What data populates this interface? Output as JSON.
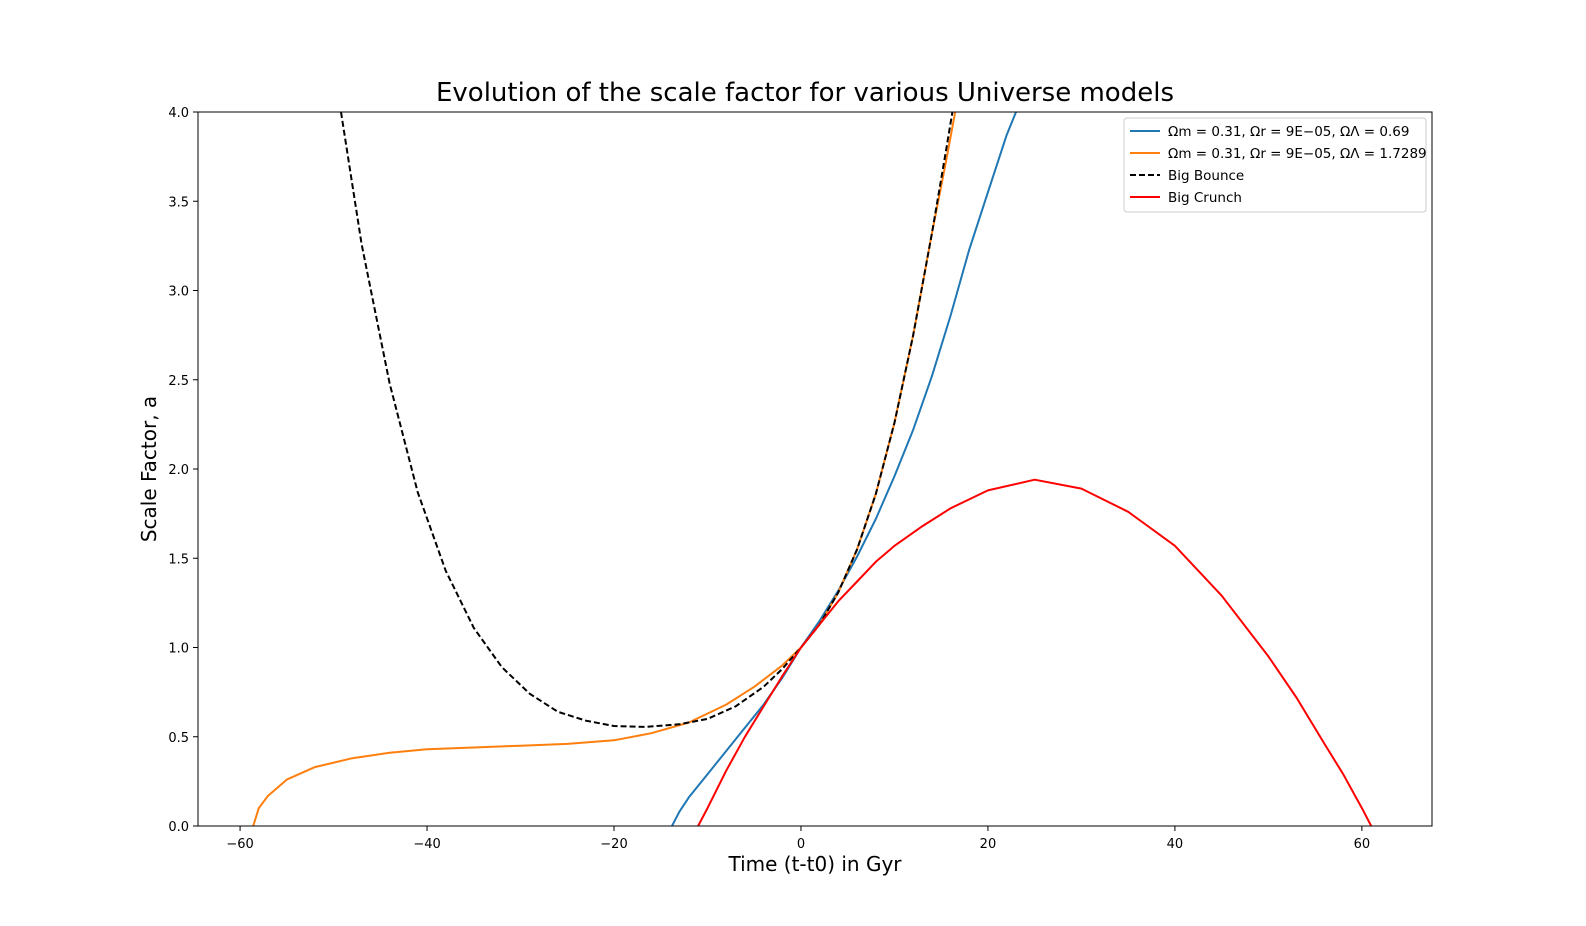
{
  "chart_data": {
    "type": "line",
    "title": "Evolution of the scale factor for various Universe models",
    "xlabel": "Time (t-t0) in Gyr",
    "ylabel": "Scale Factor, a",
    "xlim": [
      -64.5,
      67.5
    ],
    "ylim": [
      0.0,
      4.0
    ],
    "xticks": [
      -60,
      -40,
      -20,
      0,
      20,
      40,
      60
    ],
    "xtick_labels": [
      "−60",
      "−40",
      "−20",
      "0",
      "20",
      "40",
      "60"
    ],
    "yticks": [
      0.0,
      0.5,
      1.0,
      1.5,
      2.0,
      2.5,
      3.0,
      3.5,
      4.0
    ],
    "ytick_labels": [
      "0.0",
      "0.5",
      "1.0",
      "1.5",
      "2.0",
      "2.5",
      "3.0",
      "3.5",
      "4.0"
    ],
    "grid": false,
    "legend_position": "top-right",
    "series": [
      {
        "name": "Ωm = 0.31, Ωr = 9E−05, ΩΛ = 0.69",
        "color": "#1f77b4",
        "dash": "solid",
        "x": [
          -13.8,
          -13.0,
          -12.0,
          -10.0,
          -8.0,
          -6.0,
          -4.0,
          -2.0,
          0.0,
          2.0,
          4.0,
          6.0,
          8.0,
          10.0,
          12.0,
          14.0,
          16.0,
          18.0,
          20.0,
          22.0,
          23.0
        ],
        "y": [
          0.0,
          0.08,
          0.16,
          0.29,
          0.42,
          0.55,
          0.68,
          0.83,
          1.0,
          1.15,
          1.32,
          1.51,
          1.72,
          1.96,
          2.22,
          2.52,
          2.86,
          3.23,
          3.55,
          3.87,
          4.0
        ]
      },
      {
        "name": "Ωm = 0.31, Ωr = 9E−05, ΩΛ = 1.7289",
        "color": "#ff7f0e",
        "dash": "solid",
        "x": [
          -58.6,
          -58.0,
          -57.0,
          -55.0,
          -52.0,
          -48.0,
          -44.0,
          -40.0,
          -35.0,
          -30.0,
          -25.0,
          -20.0,
          -16.0,
          -12.0,
          -8.0,
          -5.0,
          -2.0,
          0.0,
          2.0,
          4.0,
          6.0,
          8.0,
          10.0,
          12.0,
          14.0,
          15.5,
          16.5
        ],
        "y": [
          0.0,
          0.1,
          0.17,
          0.26,
          0.33,
          0.38,
          0.41,
          0.43,
          0.44,
          0.45,
          0.46,
          0.48,
          0.52,
          0.58,
          0.68,
          0.78,
          0.9,
          1.0,
          1.13,
          1.31,
          1.55,
          1.86,
          2.26,
          2.75,
          3.32,
          3.72,
          4.0
        ]
      },
      {
        "name": "Big Bounce",
        "color": "#000000",
        "dash": "dashed",
        "x": [
          -49.2,
          -47.0,
          -44.0,
          -41.0,
          -38.0,
          -35.0,
          -32.0,
          -29.0,
          -26.0,
          -23.0,
          -20.0,
          -16.7,
          -13.0,
          -10.0,
          -7.0,
          -4.0,
          -2.0,
          0.0,
          2.0,
          4.0,
          6.0,
          8.0,
          10.0,
          12.0,
          14.0,
          15.5,
          16.2
        ],
        "y": [
          4.0,
          3.26,
          2.48,
          1.87,
          1.43,
          1.11,
          0.89,
          0.74,
          0.64,
          0.59,
          0.56,
          0.555,
          0.57,
          0.6,
          0.67,
          0.78,
          0.88,
          1.0,
          1.13,
          1.31,
          1.55,
          1.86,
          2.26,
          2.75,
          3.32,
          3.78,
          4.0
        ]
      },
      {
        "name": "Big Crunch",
        "color": "#ff0000",
        "dash": "solid",
        "x": [
          -11.0,
          -10.0,
          -8.0,
          -6.0,
          -4.0,
          -2.0,
          0.0,
          2.0,
          4.0,
          6.0,
          8.0,
          10.0,
          13.0,
          16.0,
          20.0,
          25.0,
          30.0,
          35.0,
          40.0,
          45.0,
          50.0,
          53.0,
          56.0,
          58.0,
          60.0,
          61.0
        ],
        "y": [
          0.0,
          0.1,
          0.31,
          0.5,
          0.67,
          0.84,
          1.0,
          1.13,
          1.26,
          1.37,
          1.48,
          1.57,
          1.68,
          1.78,
          1.88,
          1.94,
          1.89,
          1.76,
          1.57,
          1.29,
          0.95,
          0.72,
          0.46,
          0.29,
          0.1,
          0.0
        ]
      }
    ]
  }
}
